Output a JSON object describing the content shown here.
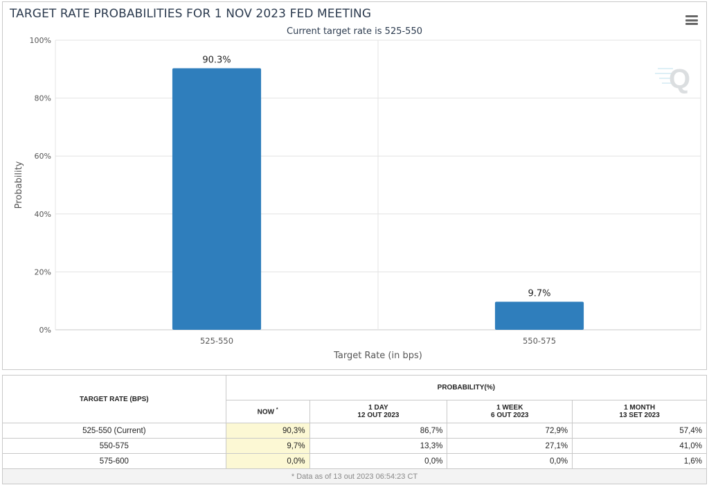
{
  "chart_data": {
    "type": "bar",
    "title": "TARGET RATE PROBABILITIES FOR 1 NOV 2023 FED MEETING",
    "subtitle": "Current target rate is 525-550",
    "categories": [
      "525-550",
      "550-575"
    ],
    "values": [
      90.3,
      9.7
    ],
    "data_labels": [
      "90.3%",
      "9.7%"
    ],
    "xlabel": "Target Rate (in bps)",
    "ylabel": "Probability",
    "ylim": [
      0,
      100
    ],
    "yticks": [
      "0%",
      "20%",
      "40%",
      "60%",
      "80%",
      "100%"
    ],
    "bar_color": "#2f7ebc",
    "grid": true
  },
  "table": {
    "rate_header": "TARGET RATE (BPS)",
    "prob_header": "PROBABILITY(%)",
    "now_label": "NOW",
    "now_marker": "*",
    "col_1day": "1 DAY",
    "col_1day_date": "12 OUT 2023",
    "col_1week": "1 WEEK",
    "col_1week_date": "6 OUT 2023",
    "col_1month": "1 MONTH",
    "col_1month_date": "13 SET 2023",
    "rows": [
      {
        "rate": "525-550 (Current)",
        "now": "90,3%",
        "day": "86,7%",
        "week": "72,9%",
        "month": "57,4%"
      },
      {
        "rate": "550-575",
        "now": "9,7%",
        "day": "13,3%",
        "week": "27,1%",
        "month": "41,0%"
      },
      {
        "rate": "575-600",
        "now": "0,0%",
        "day": "0,0%",
        "week": "0,0%",
        "month": "1,6%"
      }
    ],
    "footnote": "* Data as of 13 out 2023 06:54:23 CT"
  }
}
